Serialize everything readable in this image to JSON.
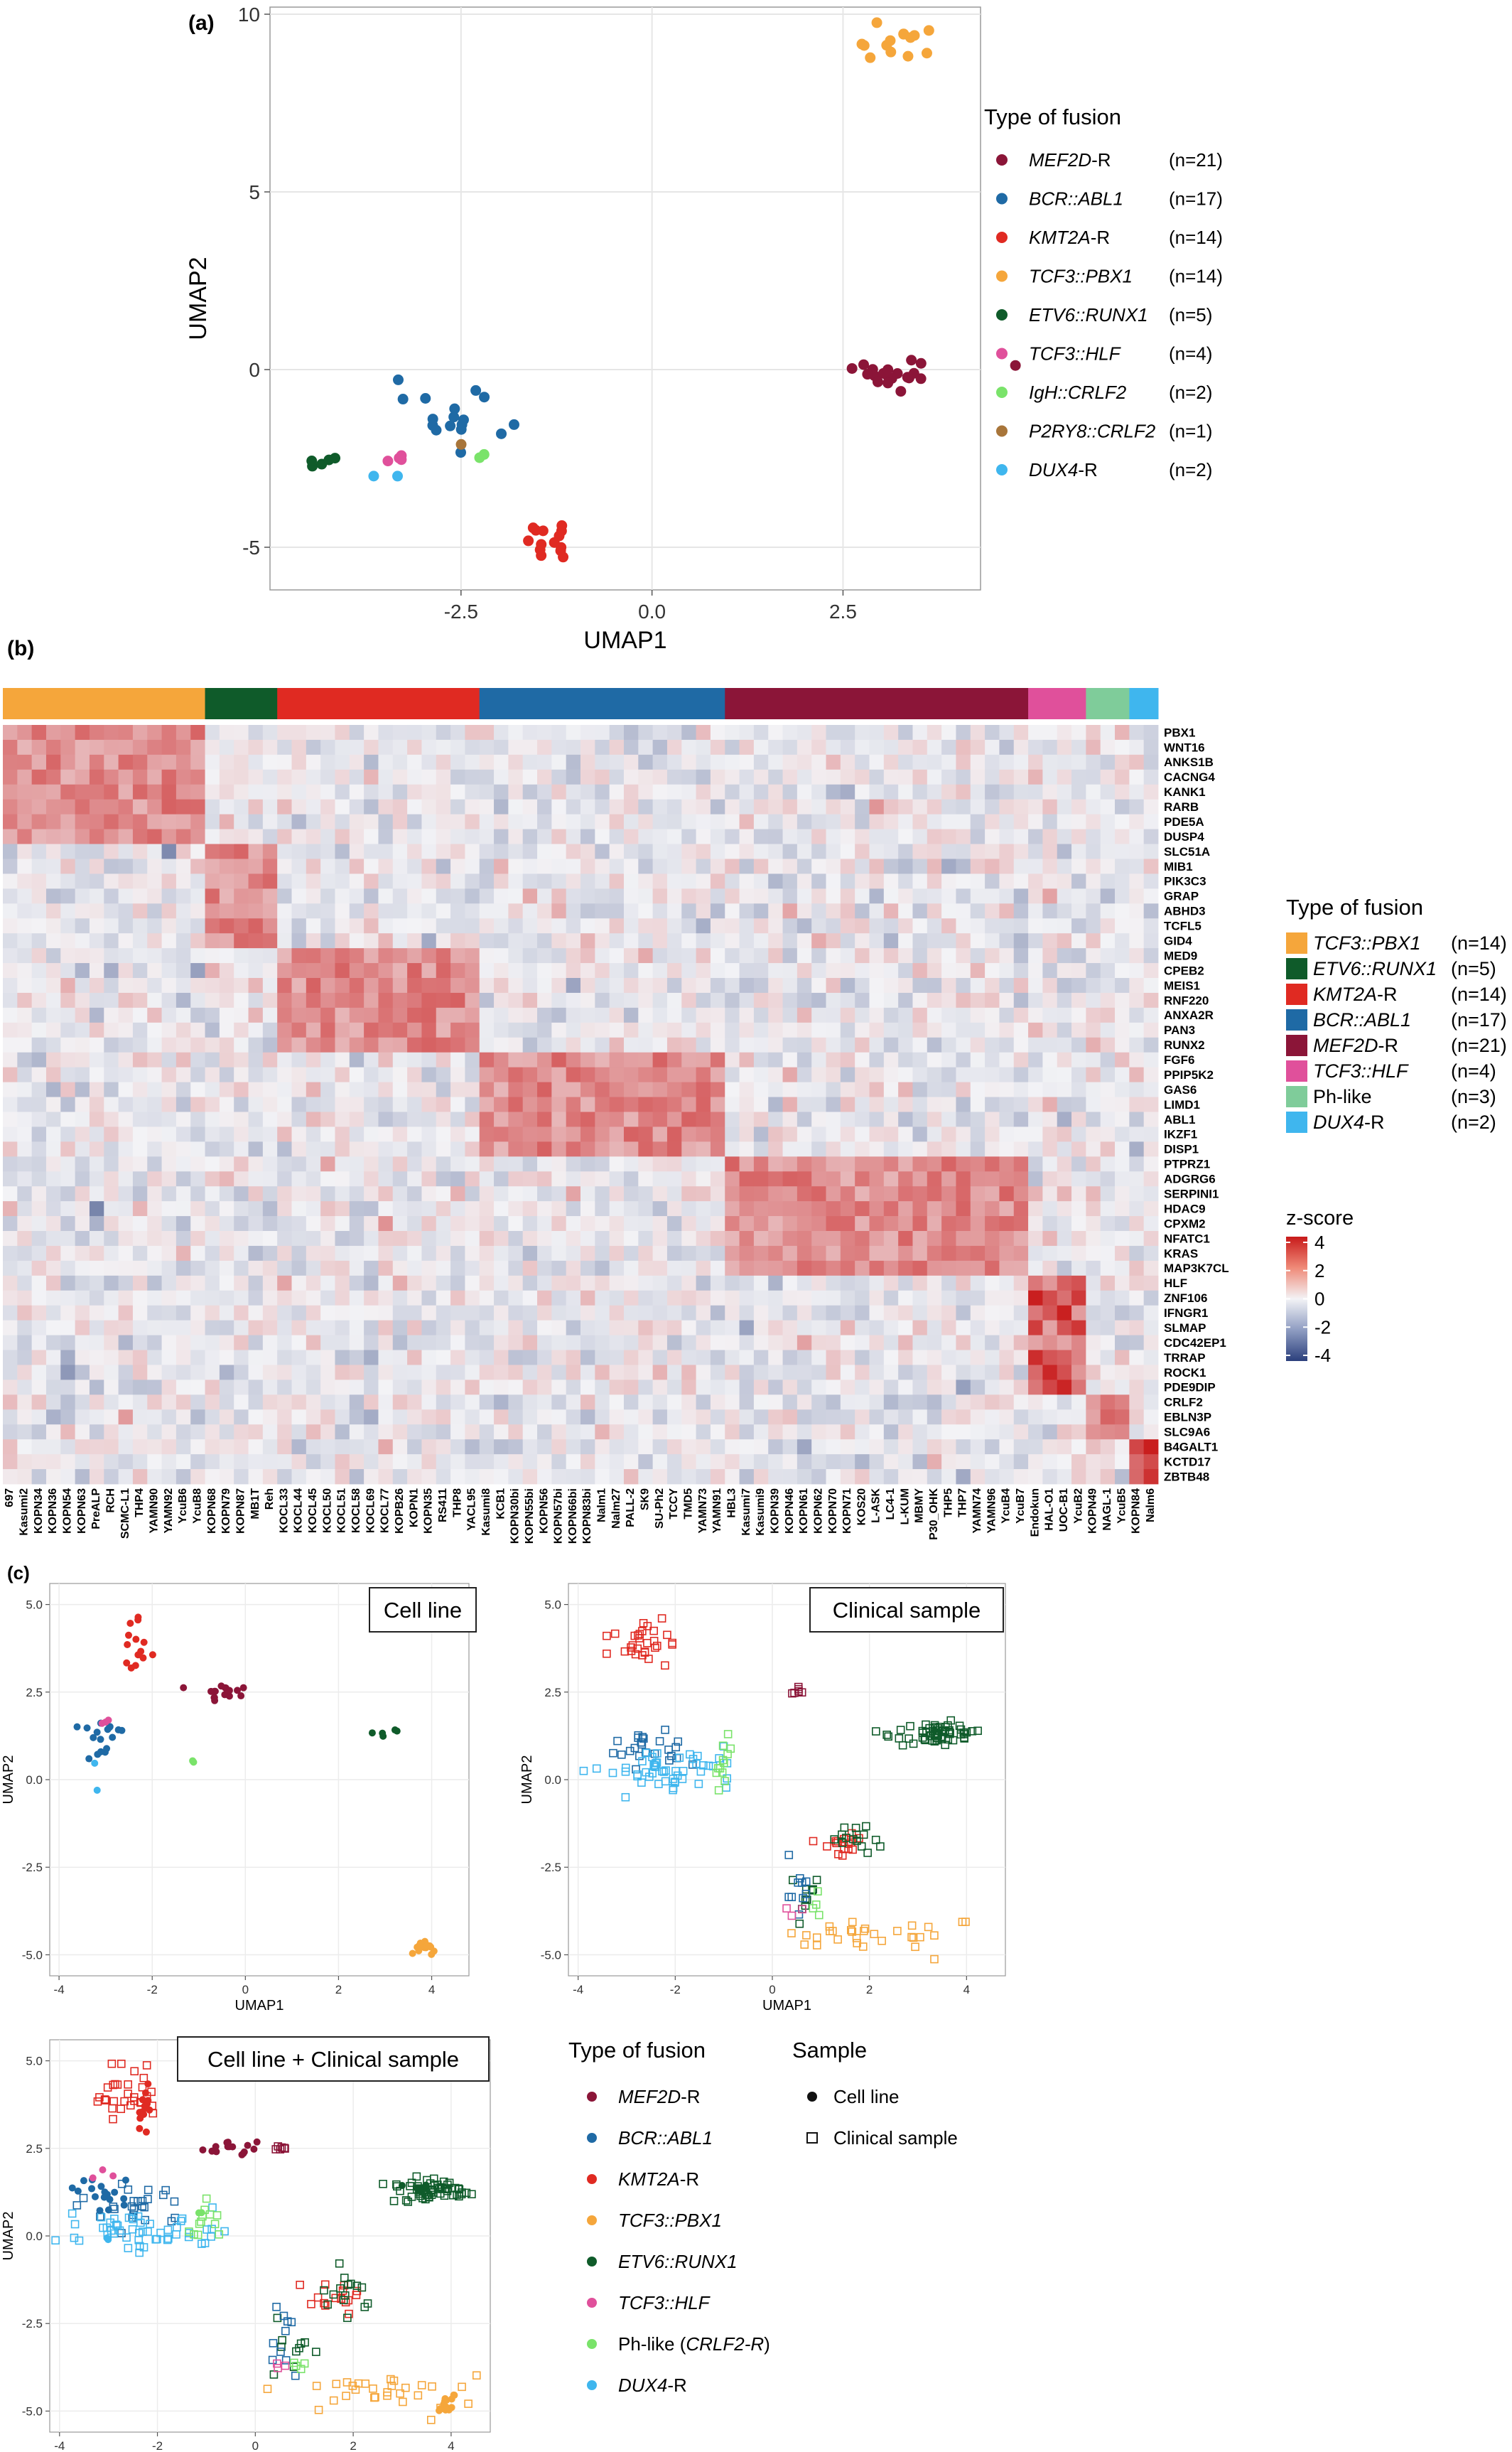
{
  "colors": {
    "MEF2D": "#8b1538",
    "BCR_ABL1": "#1f6aa5",
    "KMT2A": "#e02a22",
    "TCF3_PBX1": "#f5a63b",
    "ETV6_RUNX1": "#0f5b2a",
    "TCF3_HLF": "#e0509b",
    "IgH_CRLF2": "#7ae36a",
    "P2RY8_CRLF2": "#a8753a",
    "DUX4": "#3fb6ee",
    "Ph_like": "#7fcc9a"
  },
  "panel_a": {
    "label": "(a)",
    "chart_data": {
      "type": "scatter",
      "xlabel": "UMAP1",
      "ylabel": "UMAP2",
      "xlim": [
        -5.0,
        4.3
      ],
      "ylim": [
        -6.2,
        10.2
      ],
      "xticks": [
        "-2.5",
        "0.0",
        "2.5"
      ],
      "yticks": [
        "-5",
        "0",
        "5",
        "10"
      ],
      "grid": true,
      "legend_title": "Type of fusion",
      "legend": [
        {
          "gene": "MEF2D",
          "suffix": "-R",
          "count": "(n=21)",
          "color_key": "MEF2D"
        },
        {
          "gene": "BCR::ABL1",
          "suffix": "",
          "count": "(n=17)",
          "color_key": "BCR_ABL1"
        },
        {
          "gene": "KMT2A",
          "suffix": "-R",
          "count": "(n=14)",
          "color_key": "KMT2A"
        },
        {
          "gene": "TCF3::PBX1",
          "suffix": "",
          "count": "(n=14)",
          "color_key": "TCF3_PBX1"
        },
        {
          "gene": "ETV6::RUNX1",
          "suffix": "",
          "count": "(n=5)",
          "color_key": "ETV6_RUNX1"
        },
        {
          "gene": "TCF3::HLF",
          "suffix": "",
          "count": "(n=4)",
          "color_key": "TCF3_HLF"
        },
        {
          "gene": "IgH::CRLF2",
          "suffix": "",
          "count": "(n=2)",
          "color_key": "IgH_CRLF2"
        },
        {
          "gene": "P2RY8::CRLF2",
          "suffix": "",
          "count": "(n=1)",
          "color_key": "P2RY8_CRLF2"
        },
        {
          "gene": "DUX4",
          "suffix": "-R",
          "count": "(n=2)",
          "color_key": "DUX4"
        }
      ],
      "clusters": [
        {
          "key": "MEF2D",
          "cx": 3.2,
          "cy": 0.0,
          "sx": 0.4,
          "sy": 0.3,
          "n": 21
        },
        {
          "key": "BCR_ABL1",
          "cx": -2.6,
          "cy": -1.6,
          "sx": 0.35,
          "sy": 0.45,
          "n": 17
        },
        {
          "key": "KMT2A",
          "cx": -1.35,
          "cy": -4.6,
          "sx": 0.25,
          "sy": 0.45,
          "n": 14
        },
        {
          "key": "TCF3_PBX1",
          "cx": 3.1,
          "cy": 9.1,
          "sx": 0.3,
          "sy": 0.2,
          "n": 14
        },
        {
          "key": "ETV6_RUNX1",
          "cx": -4.3,
          "cy": -2.6,
          "sx": 0.12,
          "sy": 0.1,
          "n": 5
        },
        {
          "key": "TCF3_HLF",
          "cx": -3.3,
          "cy": -2.5,
          "sx": 0.15,
          "sy": 0.15,
          "n": 4
        },
        {
          "key": "IgH_CRLF2",
          "cx": -2.25,
          "cy": -2.4,
          "sx": 0.1,
          "sy": 0.1,
          "n": 2
        },
        {
          "key": "P2RY8_CRLF2",
          "cx": -2.5,
          "cy": -2.1,
          "sx": 0.01,
          "sy": 0.01,
          "n": 1
        },
        {
          "key": "DUX4",
          "cx": -3.7,
          "cy": -3.2,
          "sx": 0.15,
          "sy": 0.15,
          "n": 2
        }
      ]
    }
  },
  "panel_b": {
    "label": "(b)",
    "chart_data": {
      "type": "heatmap",
      "groups": [
        {
          "key": "TCF3_PBX1",
          "n": 14,
          "high_genes": [
            0,
            7
          ]
        },
        {
          "key": "ETV6_RUNX1",
          "n": 5,
          "high_genes": [
            8,
            14
          ]
        },
        {
          "key": "KMT2A",
          "n": 14,
          "high_genes": [
            15,
            21
          ]
        },
        {
          "key": "BCR_ABL1",
          "n": 17,
          "high_genes": [
            22,
            28
          ]
        },
        {
          "key": "MEF2D",
          "n": 21,
          "high_genes": [
            29,
            36
          ]
        },
        {
          "key": "TCF3_HLF",
          "n": 4,
          "high_genes": [
            37,
            44
          ]
        },
        {
          "key": "Ph_like",
          "n": 3,
          "high_genes": [
            45,
            47
          ]
        },
        {
          "key": "DUX4",
          "n": 2,
          "high_genes": [
            48,
            50
          ]
        }
      ],
      "genes": [
        "PBX1",
        "WNT16",
        "ANKS1B",
        "CACNG4",
        "KANK1",
        "RARB",
        "PDE5A",
        "DUSP4",
        "SLC51A",
        "MIB1",
        "PIK3C3",
        "GRAP",
        "ABHD3",
        "TCFL5",
        "GID4",
        "MED9",
        "CPEB2",
        "MEIS1",
        "RNF220",
        "ANXA2R",
        "PAN3",
        "RUNX2",
        "FGF6",
        "PPIP5K2",
        "GAS6",
        "LIMD1",
        "ABL1",
        "IKZF1",
        "DISP1",
        "PTPRZ1",
        "ADGRG6",
        "SERPINI1",
        "HDAC9",
        "CPXM2",
        "NFATC1",
        "KRAS",
        "MAP3K7CL",
        "HLF",
        "ZNF106",
        "IFNGR1",
        "SLMAP",
        "CDC42EP1",
        "TRRAP",
        "ROCK1",
        "PDE9DIP",
        "CRLF2",
        "EBLN3P",
        "SLC9A6",
        "B4GALT1",
        "KCTD17",
        "ZBTB48"
      ],
      "samples": [
        "697",
        "Kasumi2",
        "KOPN34",
        "KOPN36",
        "KOPN54",
        "KOPN63",
        "PreALP",
        "RCH",
        "SCMC-L1",
        "THP4",
        "YAMN90",
        "YAMN92",
        "YcuB6",
        "YcuB8",
        "KOPN68",
        "KOPN79",
        "KOPN87",
        "MB1T",
        "Reh",
        "KOCL33",
        "KOCL44",
        "KOCL45",
        "KOCL50",
        "KOCL51",
        "KOCL58",
        "KOCL69",
        "KOCL77",
        "KOPB26",
        "KOPN1",
        "KOPN35",
        "RS411",
        "THP8",
        "YACL95",
        "Kasumi8",
        "KCB1",
        "KOPN30bi",
        "KOPN55bi",
        "KOPN56",
        "KOPN57bi",
        "KOPN66bi",
        "KOPN83bi",
        "Nalm1",
        "Nalm27",
        "PALL-2",
        "SK9",
        "SU-Ph2",
        "TCCY",
        "TMD5",
        "YAMN73",
        "YAMN91",
        "HBL3",
        "Kasumi7",
        "Kasumi9",
        "KOPN39",
        "KOPN46",
        "KOPN61",
        "KOPN62",
        "KOPN70",
        "KOPN71",
        "KOS20",
        "L-ASK",
        "LC4-1",
        "L-KUM",
        "MBMY",
        "P30_OHK",
        "THP5",
        "THP7",
        "YAMN74",
        "YAMN96",
        "YcuB4",
        "YcuB7",
        "Endokun",
        "HAL-O1",
        "UOC-B1",
        "YcuB2",
        "KOPN49",
        "NAGL-1",
        "YcuB5",
        "KOPN84",
        "Nalm6"
      ],
      "legend_title": "Type of fusion",
      "legend": [
        {
          "gene": "TCF3::PBX1",
          "suffix": "",
          "count": "(n=14)",
          "color_key": "TCF3_PBX1",
          "italic": true
        },
        {
          "gene": "ETV6::RUNX1",
          "suffix": "",
          "count": "(n=5)",
          "color_key": "ETV6_RUNX1",
          "italic": true
        },
        {
          "gene": "KMT2A",
          "suffix": "-R",
          "count": "(n=14)",
          "color_key": "KMT2A",
          "italic": true
        },
        {
          "gene": "BCR::ABL1",
          "suffix": "",
          "count": "(n=17)",
          "color_key": "BCR_ABL1",
          "italic": true
        },
        {
          "gene": "MEF2D",
          "suffix": "-R",
          "count": "(n=21)",
          "color_key": "MEF2D",
          "italic": true
        },
        {
          "gene": "TCF3::HLF",
          "suffix": "",
          "count": "(n=4)",
          "color_key": "TCF3_HLF",
          "italic": true
        },
        {
          "gene": "Ph-like",
          "suffix": "",
          "count": "(n=3)",
          "color_key": "Ph_like",
          "italic": false
        },
        {
          "gene": "DUX4",
          "suffix": "-R",
          "count": "(n=2)",
          "color_key": "DUX4",
          "italic": true
        }
      ],
      "colorbar_title": "z-score",
      "colorbar_ticks": [
        "4",
        "2",
        "0",
        "-2",
        "-4"
      ],
      "zlim": [
        -4,
        4
      ]
    }
  },
  "panel_c": {
    "label": "(c)",
    "subplots": [
      {
        "title": "Cell line",
        "chart_data": {
          "type": "scatter",
          "xlabel": "UMAP1",
          "ylabel": "UMAP2",
          "xlim": [
            -4.2,
            4.8
          ],
          "ylim": [
            -5.6,
            5.6
          ],
          "xticks": [
            "-4",
            "-2",
            "0",
            "2",
            "4"
          ],
          "yticks": [
            "5.0",
            "2.5",
            "0.0",
            "-2.5",
            "-5.0"
          ],
          "clusters": [
            {
              "key": "KMT2A",
              "shape": "dot",
              "cx": -2.3,
              "cy": 3.5,
              "sx": 0.15,
              "sy": 0.5,
              "n": 14
            },
            {
              "key": "MEF2D",
              "shape": "dot",
              "cx": -0.5,
              "cy": 2.5,
              "sx": 0.3,
              "sy": 0.15,
              "n": 16
            },
            {
              "key": "BCR_ABL1",
              "shape": "dot",
              "cx": -3.1,
              "cy": 1.2,
              "sx": 0.25,
              "sy": 0.3,
              "n": 17
            },
            {
              "key": "TCF3_HLF",
              "shape": "dot",
              "cx": -3.1,
              "cy": 1.7,
              "sx": 0.1,
              "sy": 0.1,
              "n": 3
            },
            {
              "key": "DUX4",
              "shape": "dot",
              "cx": -3.1,
              "cy": 0.1,
              "sx": 0.1,
              "sy": 0.2,
              "n": 2
            },
            {
              "key": "IgH_CRLF2",
              "shape": "dot",
              "cx": -1.1,
              "cy": 0.6,
              "sx": 0.05,
              "sy": 0.1,
              "n": 2
            },
            {
              "key": "ETV6_RUNX1",
              "shape": "dot",
              "cx": 3.2,
              "cy": 1.3,
              "sx": 0.3,
              "sy": 0.1,
              "n": 5
            },
            {
              "key": "TCF3_PBX1",
              "shape": "dot",
              "cx": 3.9,
              "cy": -4.8,
              "sx": 0.12,
              "sy": 0.15,
              "n": 14
            }
          ]
        }
      },
      {
        "title": "Clinical sample",
        "chart_data": {
          "type": "scatter",
          "xlabel": "UMAP1",
          "ylabel": "UMAP2",
          "xlim": [
            -4.2,
            4.8
          ],
          "ylim": [
            -5.6,
            5.6
          ],
          "xticks": [
            "-4",
            "-2",
            "0",
            "2",
            "4"
          ],
          "yticks": [
            "5.0",
            "2.5",
            "0.0",
            "-2.5",
            "-5.0"
          ],
          "clusters": [
            {
              "key": "KMT2A",
              "shape": "square",
              "cx": -2.6,
              "cy": 4.0,
              "sx": 0.35,
              "sy": 0.4,
              "n": 30
            },
            {
              "key": "MEF2D",
              "shape": "square",
              "cx": 0.5,
              "cy": 2.5,
              "sx": 0.08,
              "sy": 0.05,
              "n": 6
            },
            {
              "key": "BCR_ABL1",
              "shape": "square",
              "cx": -2.5,
              "cy": 0.9,
              "sx": 0.5,
              "sy": 0.3,
              "n": 25
            },
            {
              "key": "DUX4",
              "shape": "square",
              "cx": -2.3,
              "cy": 0.3,
              "sx": 0.8,
              "sy": 0.3,
              "n": 50
            },
            {
              "key": "IgH_CRLF2",
              "shape": "square",
              "cx": -1.0,
              "cy": 0.6,
              "sx": 0.15,
              "sy": 0.35,
              "n": 12
            },
            {
              "key": "ETV6_RUNX1",
              "shape": "square",
              "cx": 3.5,
              "cy": 1.3,
              "sx": 0.4,
              "sy": 0.15,
              "n": 60
            },
            {
              "key": "KMT2A",
              "shape": "square",
              "cx": 1.5,
              "cy": -1.8,
              "sx": 0.3,
              "sy": 0.2,
              "n": 15
            },
            {
              "key": "ETV6_RUNX1",
              "shape": "square",
              "cx": 1.8,
              "cy": -1.6,
              "sx": 0.25,
              "sy": 0.3,
              "n": 15
            },
            {
              "key": "ETV6_RUNX1",
              "shape": "square",
              "cx": 0.8,
              "cy": -3.3,
              "sx": 0.2,
              "sy": 0.4,
              "n": 10
            },
            {
              "key": "BCR_ABL1",
              "shape": "square",
              "cx": 0.6,
              "cy": -3.0,
              "sx": 0.2,
              "sy": 0.5,
              "n": 10
            },
            {
              "key": "TCF3_HLF",
              "shape": "square",
              "cx": 0.5,
              "cy": -3.8,
              "sx": 0.1,
              "sy": 0.1,
              "n": 3
            },
            {
              "key": "TCF3_PBX1",
              "shape": "square",
              "cx": 2.3,
              "cy": -4.4,
              "sx": 1.0,
              "sy": 0.3,
              "n": 30
            },
            {
              "key": "IgH_CRLF2",
              "shape": "square",
              "cx": 0.9,
              "cy": -3.6,
              "sx": 0.1,
              "sy": 0.2,
              "n": 4
            }
          ]
        }
      },
      {
        "title": "Cell line + Clinical sample",
        "chart_data": {
          "type": "scatter",
          "xlabel": "UMAP1",
          "ylabel": "UMAP2",
          "xlim": [
            -4.2,
            4.8
          ],
          "ylim": [
            -5.6,
            5.6
          ],
          "xticks": [
            "-4",
            "-2",
            "0",
            "2",
            "4"
          ],
          "yticks": [
            "5.0",
            "2.5",
            "0.0",
            "-2.5",
            "-5.0"
          ],
          "combined": true
        }
      }
    ],
    "legend": {
      "fusion_title": "Type of fusion",
      "fusion": [
        {
          "gene": "MEF2D",
          "suffix": "-R",
          "color_key": "MEF2D",
          "italic": true
        },
        {
          "gene": "BCR::ABL1",
          "suffix": "",
          "color_key": "BCR_ABL1",
          "italic": true
        },
        {
          "gene": "KMT2A",
          "suffix": "-R",
          "color_key": "KMT2A",
          "italic": true
        },
        {
          "gene": "TCF3::PBX1",
          "suffix": "",
          "color_key": "TCF3_PBX1",
          "italic": true
        },
        {
          "gene": "ETV6::RUNX1",
          "suffix": "",
          "color_key": "ETV6_RUNX1",
          "italic": true
        },
        {
          "gene": "TCF3::HLF",
          "suffix": "",
          "color_key": "TCF3_HLF",
          "italic": true
        },
        {
          "gene": "Ph-like (",
          "suffix": ")",
          "inner": "CRLF2-R",
          "color_key": "IgH_CRLF2",
          "italic": false
        },
        {
          "gene": "DUX4",
          "suffix": "-R",
          "color_key": "DUX4",
          "italic": true
        }
      ],
      "sample_title": "Sample",
      "samples": [
        {
          "label": "Cell line",
          "shape": "dot"
        },
        {
          "label": "Clinical sample",
          "shape": "square"
        }
      ]
    }
  }
}
